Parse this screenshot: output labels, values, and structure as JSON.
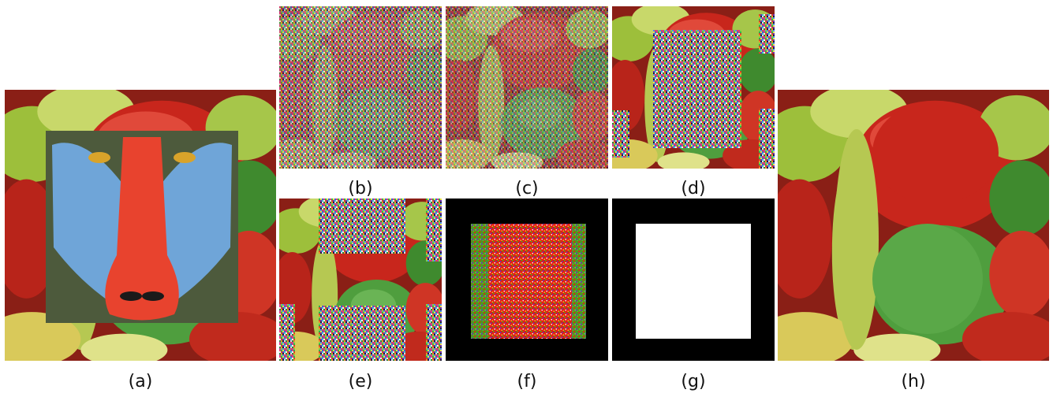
{
  "figure": {
    "panels": [
      {
        "label": "(a)",
        "content": "peppers image with embedded mandrill face in central square"
      },
      {
        "label": "(b)",
        "content": "peppers image heavily corrupted by colored noise"
      },
      {
        "label": "(c)",
        "content": "peppers image with lighter colored noise"
      },
      {
        "label": "(d)",
        "content": "peppers image with noise block covering center and right edge"
      },
      {
        "label": "(e)",
        "content": "peppers image with scattered noise blocks"
      },
      {
        "label": "(f)",
        "content": "red noisy square on black background"
      },
      {
        "label": "(g)",
        "content": "white square mask on black background"
      },
      {
        "label": "(h)",
        "content": "recovered peppers image"
      }
    ],
    "colors": {
      "background": "#ffffff",
      "red_pepper": "#c8261c",
      "green_pepper": "#4f9e3e",
      "yellow_pepper": "#b9c84c",
      "mandrill_blue": "#6fa5d8",
      "mandrill_red": "#e8432e",
      "mask_black": "#000000",
      "mask_white": "#ffffff"
    }
  }
}
